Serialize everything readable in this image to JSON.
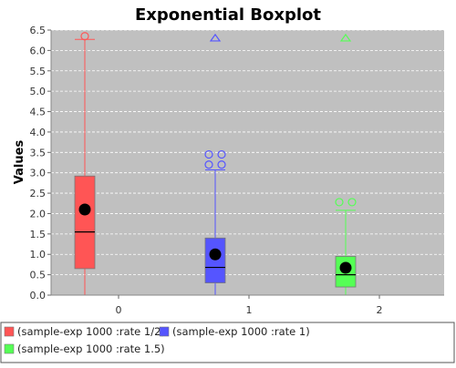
{
  "chart_data": {
    "type": "boxplot",
    "title": "Exponential Boxplot",
    "xlabel": "",
    "ylabel": "Values",
    "ylim": [
      0.0,
      6.5
    ],
    "y_ticks": [
      "0.0",
      "0.5",
      "1.0",
      "1.5",
      "2.0",
      "2.5",
      "3.0",
      "3.5",
      "4.0",
      "4.5",
      "5.0",
      "5.5",
      "6.0",
      "6.5"
    ],
    "categories": [
      "0",
      "1",
      "2"
    ],
    "grid": true,
    "legend_position": "bottom",
    "series": [
      {
        "name": "(sample-exp 1000 :rate 1/2)",
        "color": "#ff5555",
        "category": "0",
        "min": 0.0,
        "q1": 0.65,
        "median": 1.55,
        "q3": 2.92,
        "max": 6.27,
        "mean": 2.1,
        "outliers": [
          6.35
        ],
        "far_outliers": []
      },
      {
        "name": "(sample-exp 1000 :rate 1)",
        "color": "#5555ff",
        "category": "1",
        "min": 0.0,
        "q1": 0.3,
        "median": 0.68,
        "q3": 1.4,
        "max": 3.07,
        "mean": 1.0,
        "outliers": [
          3.45,
          3.45,
          3.2,
          3.2
        ],
        "far_outliers": [
          6.3
        ]
      },
      {
        "name": "(sample-exp 1000 :rate 1.5)",
        "color": "#55ff55",
        "category": "2",
        "min": 0.0,
        "q1": 0.2,
        "median": 0.5,
        "q3": 0.95,
        "max": 2.08,
        "mean": 0.67,
        "outliers": [
          2.28,
          2.28
        ],
        "far_outliers": [
          6.3
        ]
      }
    ]
  }
}
